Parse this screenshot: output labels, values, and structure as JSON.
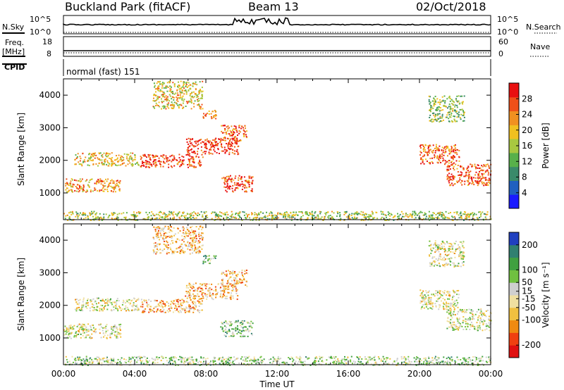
{
  "header": {
    "title": "Buckland Park (fitACF)",
    "beam": "Beam 13",
    "date": "02/Oct/2018"
  },
  "strip": {
    "nsky_label": "N.Sky",
    "nsky_ticks": [
      "10^5",
      "10^0"
    ],
    "nsearch_label": "N.Search",
    "nsearch_ticks": [
      "10^5",
      "10^0"
    ],
    "freq_label": "Freq.",
    "freq_unit": "[MHz]",
    "freq_ticks": [
      "18",
      "8"
    ],
    "nave_label": "Nave",
    "nave_ticks": [
      "60",
      "0"
    ],
    "cpid_label": "CPID",
    "cpid_text": "normal (fast) 151"
  },
  "chart_data": [
    {
      "type": "heatmap",
      "name": "power",
      "ylabel": "Slant Range [km]",
      "ylim": [
        180,
        4500
      ],
      "yticks": [
        "1000",
        "2000",
        "3000",
        "4000"
      ],
      "ytick_values": [
        1000,
        2000,
        3000,
        4000
      ],
      "xlim": [
        0,
        24
      ],
      "xticks": [
        "00:00",
        "04:00",
        "08:00",
        "12:00",
        "16:00",
        "20:00",
        "00:00"
      ],
      "colorbar": {
        "label": "Power [dB]",
        "ticks": [
          "4",
          "8",
          "12",
          "16",
          "20",
          "24",
          "28"
        ],
        "tick_values": [
          4,
          8,
          12,
          16,
          20,
          24,
          28
        ],
        "range": [
          0,
          32
        ],
        "colors": [
          "#1a1aff",
          "#2060c0",
          "#3a8a6a",
          "#58b04a",
          "#a8c840",
          "#f0c020",
          "#f09020",
          "#f05018",
          "#e81010"
        ]
      },
      "regions": [
        {
          "t0": 0.0,
          "t1": 24.0,
          "r0": 180,
          "r1": 450,
          "level": 0.5
        },
        {
          "t0": 0.0,
          "t1": 3.2,
          "r0": 1050,
          "r1": 1450,
          "level": 0.7
        },
        {
          "t0": 0.6,
          "t1": 4.2,
          "r0": 1850,
          "r1": 2250,
          "level": 0.6
        },
        {
          "t0": 4.3,
          "t1": 7.8,
          "r0": 1800,
          "r1": 2200,
          "level": 0.85
        },
        {
          "t0": 6.8,
          "t1": 9.8,
          "r0": 2200,
          "r1": 2700,
          "level": 0.9
        },
        {
          "t0": 8.8,
          "t1": 10.3,
          "r0": 2600,
          "r1": 3100,
          "level": 0.8
        },
        {
          "t0": 8.8,
          "t1": 10.6,
          "r0": 1050,
          "r1": 1550,
          "level": 0.85
        },
        {
          "t0": 5.0,
          "t1": 7.8,
          "r0": 3600,
          "r1": 4450,
          "level": 0.6
        },
        {
          "t0": 7.8,
          "t1": 8.6,
          "r0": 3300,
          "r1": 3550,
          "level": 0.75
        },
        {
          "t0": 20.0,
          "t1": 22.2,
          "r0": 1900,
          "r1": 2500,
          "level": 0.8
        },
        {
          "t0": 21.5,
          "t1": 24.0,
          "r0": 1250,
          "r1": 1900,
          "level": 0.85
        },
        {
          "t0": 20.5,
          "t1": 22.5,
          "r0": 3200,
          "r1": 4000,
          "level": 0.45
        }
      ]
    },
    {
      "type": "heatmap",
      "name": "velocity",
      "ylabel": "Slant Range [km]",
      "ylim": [
        180,
        4500
      ],
      "yticks": [
        "1000",
        "2000",
        "3000",
        "4000"
      ],
      "ytick_values": [
        1000,
        2000,
        3000,
        4000
      ],
      "xlim": [
        0,
        24
      ],
      "xticks": [
        "00:00",
        "04:00",
        "08:00",
        "12:00",
        "16:00",
        "20:00",
        "00:00"
      ],
      "xlabel": "Time UT",
      "colorbar": {
        "label": "Velocity [m s⁻¹]",
        "ticks": [
          "-200",
          "-100",
          "-50",
          "-15",
          "15",
          "50",
          "100",
          "200"
        ],
        "tick_values": [
          -200,
          -100,
          -50,
          -15,
          15,
          50,
          100,
          200
        ],
        "range": [
          -250,
          250
        ],
        "colors": [
          "#e01010",
          "#f04010",
          "#f08a10",
          "#f0c040",
          "#f0e0a0",
          "#cfcfcf",
          "#70c040",
          "#40a040",
          "#308070",
          "#2040c0"
        ]
      },
      "regions": [
        {
          "t0": 0.0,
          "t1": 24.0,
          "r0": 180,
          "r1": 450,
          "level": 0.6
        },
        {
          "t0": 0.0,
          "t1": 3.2,
          "r0": 1000,
          "r1": 1450,
          "level": 0.5
        },
        {
          "t0": 0.6,
          "t1": 4.2,
          "r0": 1850,
          "r1": 2250,
          "level": 0.5
        },
        {
          "t0": 4.3,
          "t1": 7.8,
          "r0": 1800,
          "r1": 2200,
          "level": 0.35
        },
        {
          "t0": 6.8,
          "t1": 9.8,
          "r0": 2200,
          "r1": 2700,
          "level": 0.35
        },
        {
          "t0": 8.8,
          "t1": 10.3,
          "r0": 2600,
          "r1": 3100,
          "level": 0.35
        },
        {
          "t0": 8.8,
          "t1": 10.6,
          "r0": 1050,
          "r1": 1550,
          "level": 0.65
        },
        {
          "t0": 5.0,
          "t1": 7.8,
          "r0": 3600,
          "r1": 4450,
          "level": 0.35
        },
        {
          "t0": 7.8,
          "t1": 8.6,
          "r0": 3300,
          "r1": 3550,
          "level": 0.65
        },
        {
          "t0": 20.0,
          "t1": 22.2,
          "r0": 1900,
          "r1": 2500,
          "level": 0.5
        },
        {
          "t0": 21.5,
          "t1": 24.0,
          "r0": 1250,
          "r1": 1900,
          "level": 0.5
        },
        {
          "t0": 20.5,
          "t1": 22.5,
          "r0": 3200,
          "r1": 4000,
          "level": 0.5
        }
      ]
    }
  ]
}
